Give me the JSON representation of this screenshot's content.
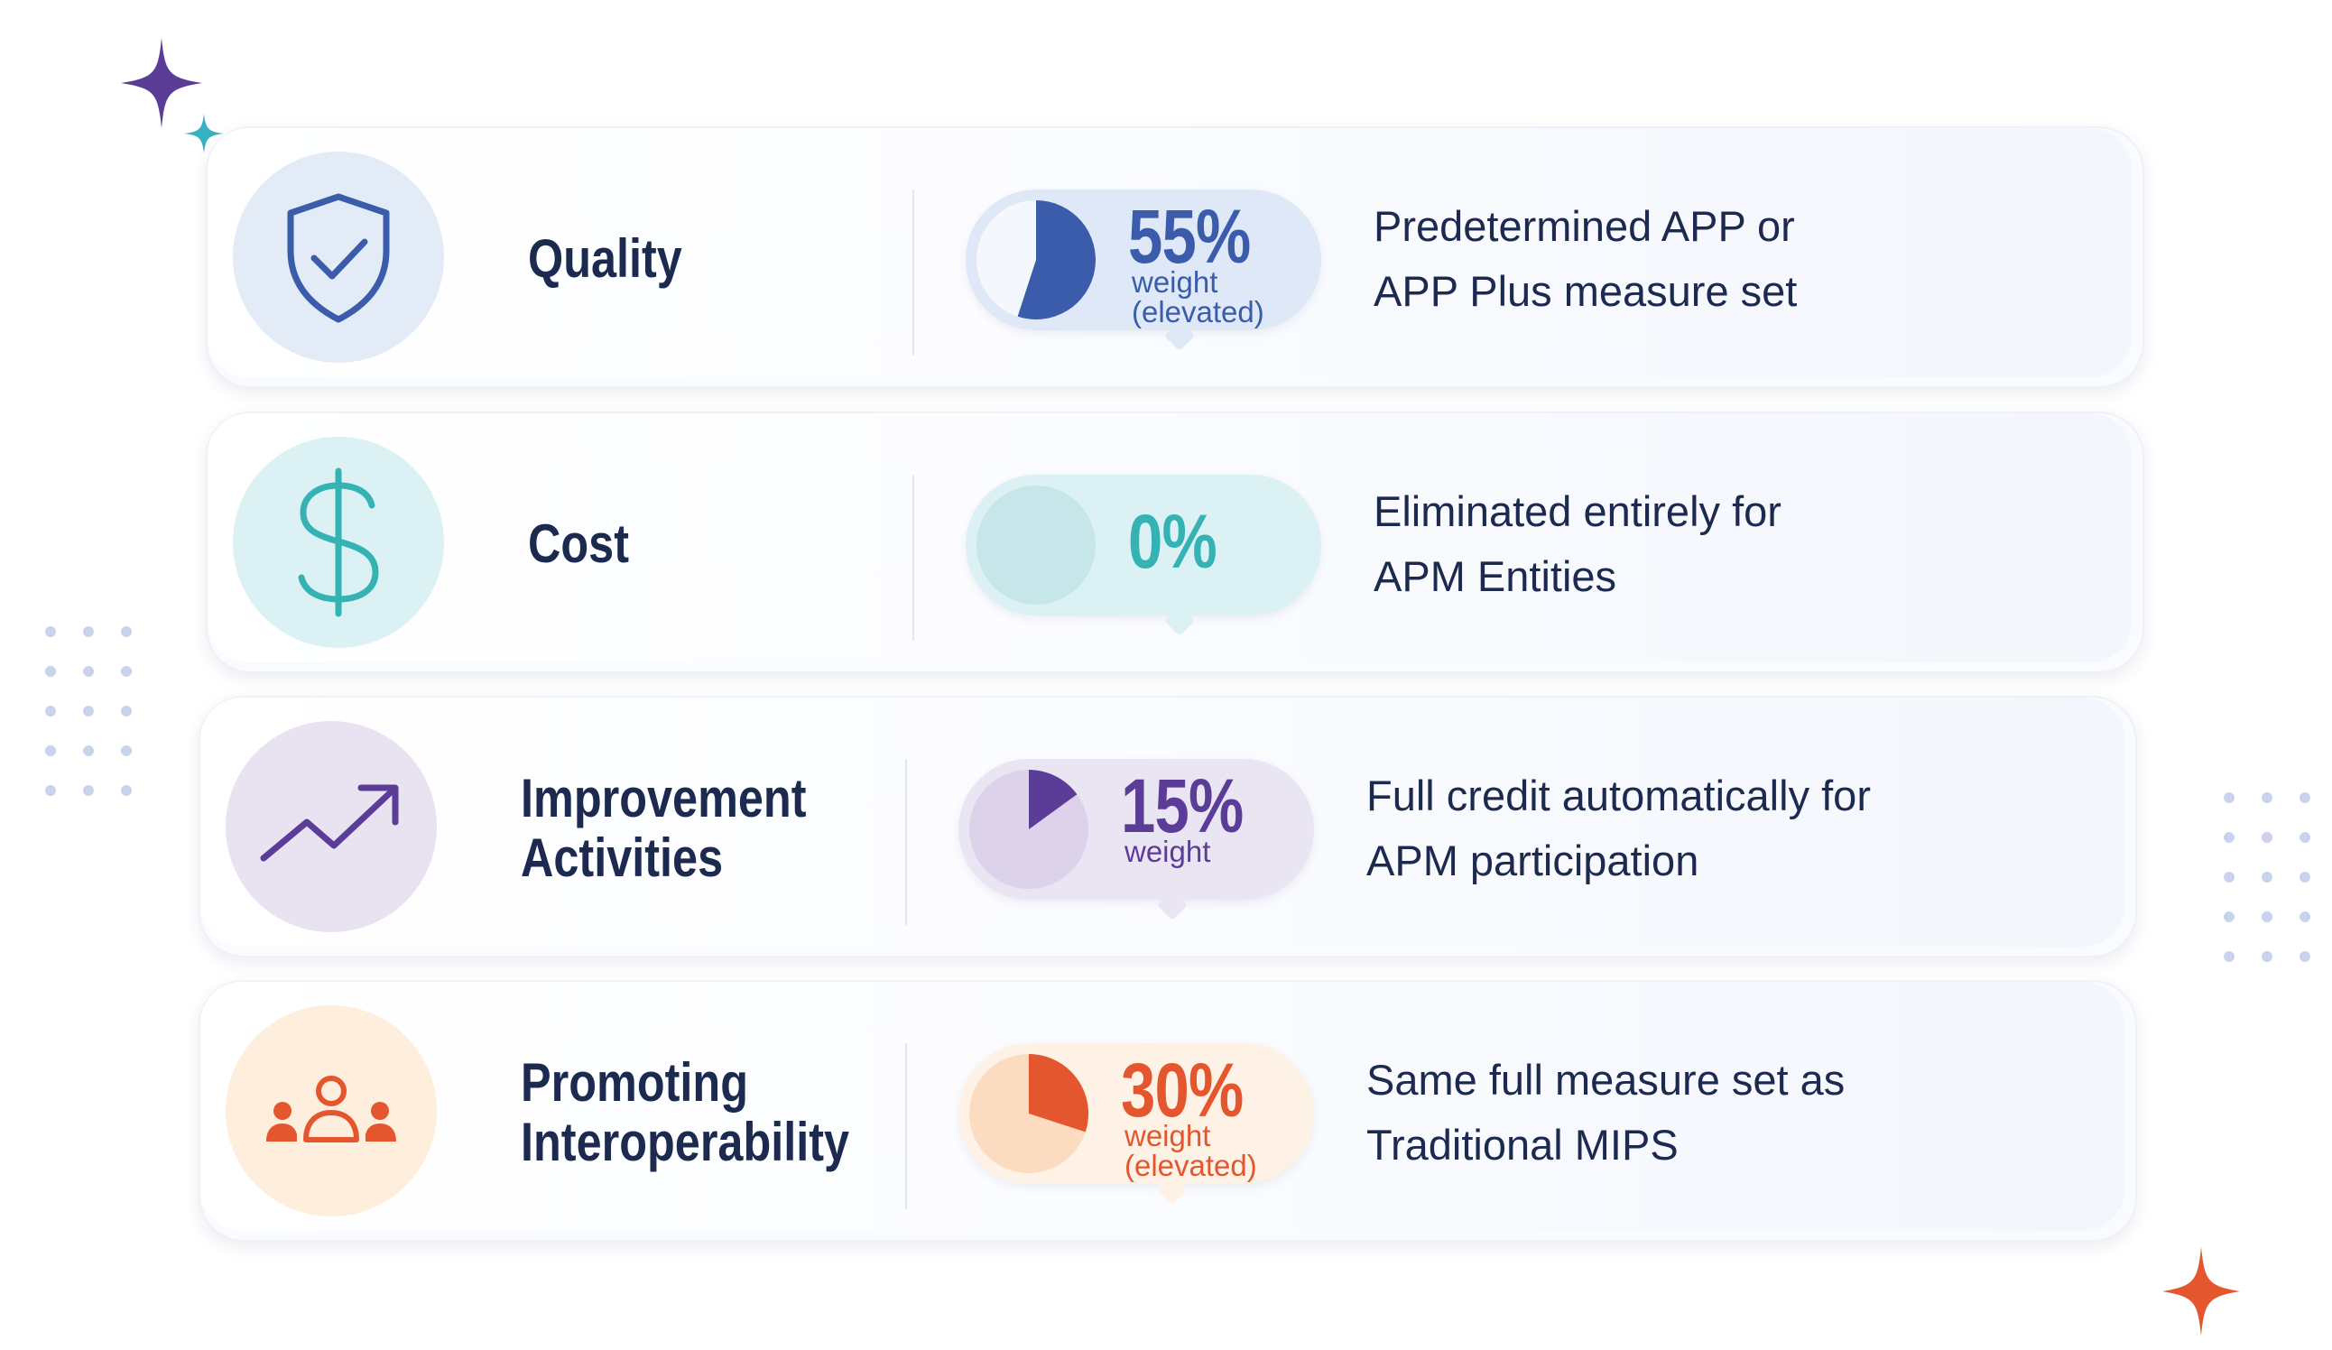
{
  "colors": {
    "quality": "#3b5bab",
    "cost": "#35b2b4",
    "improvement": "#5b3d98",
    "promoting": "#e4572e",
    "label_text": "#1b2a4e"
  },
  "rows": [
    {
      "icon": "shield-check-icon",
      "label": "Quality",
      "percent": "55%",
      "weight_note": "weight\n(elevated)",
      "weight_fraction": 0.55,
      "description": "Predetermined APP or\nAPP Plus measure set"
    },
    {
      "icon": "dollar-sign-icon",
      "label": "Cost",
      "percent": "0%",
      "weight_note": "",
      "weight_fraction": 0,
      "description": "Eliminated entirely for\nAPM Entities"
    },
    {
      "icon": "trending-up-icon",
      "label": "Improvement\nActivities",
      "percent": "15%",
      "weight_note": "weight",
      "weight_fraction": 0.15,
      "description": "Full credit automatically for\nAPM participation"
    },
    {
      "icon": "people-group-icon",
      "label": "Promoting\nInteroperability",
      "percent": "30%",
      "weight_note": "weight\n(elevated)",
      "weight_fraction": 0.3,
      "description": "Same full measure set as\nTraditional MIPS"
    }
  ]
}
